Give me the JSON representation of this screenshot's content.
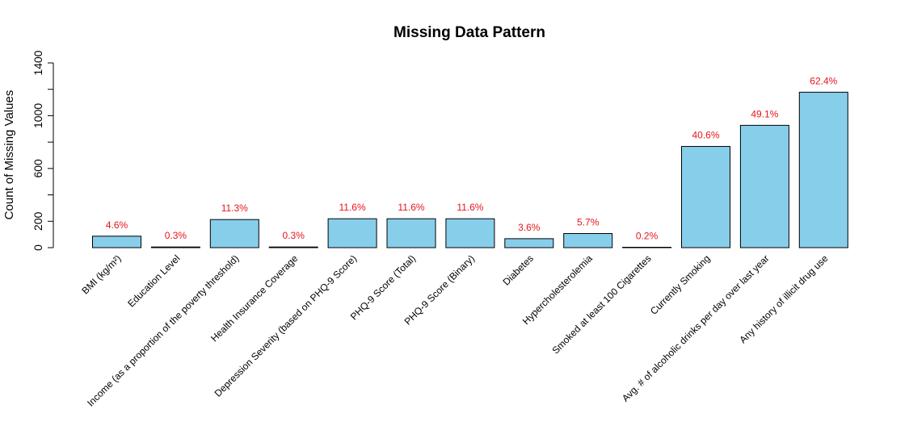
{
  "chart_data": {
    "type": "bar",
    "title": "Missing Data Pattern",
    "ylabel": "Count of Missing Values",
    "xlabel": "",
    "ylim": [
      0,
      1400
    ],
    "yticks": [
      0,
      200,
      600,
      1000,
      1400
    ],
    "grid": false,
    "bar_color": "#87CEEB",
    "bar_border_color": "#000000",
    "label_color": "#E8141B",
    "categories": [
      "BMI (kg/m²)",
      "Education Level",
      "Income (as a proportion of the poverty threshold)",
      "Health Insurance Coverage",
      "Depression Severity (based on PHQ-9 Score)",
      "PHQ-9 Score (Total)",
      "PHQ-9 Score (Binary)",
      "Diabetes",
      "Hypercholesterolemia",
      "Smoked at least 100 Cigarettes",
      "Currently Smoking",
      "Avg. # of alcoholic drinks per day over last year",
      "Any history of illicit drug use"
    ],
    "values": [
      87,
      5,
      213,
      5,
      219,
      219,
      219,
      68,
      107,
      3,
      767,
      927,
      1178
    ],
    "labels": [
      "4.6%",
      "0.3%",
      "11.3%",
      "0.3%",
      "11.6%",
      "11.6%",
      "11.6%",
      "3.6%",
      "5.7%",
      "0.2%",
      "40.6%",
      "49.1%",
      "62.4%"
    ]
  }
}
